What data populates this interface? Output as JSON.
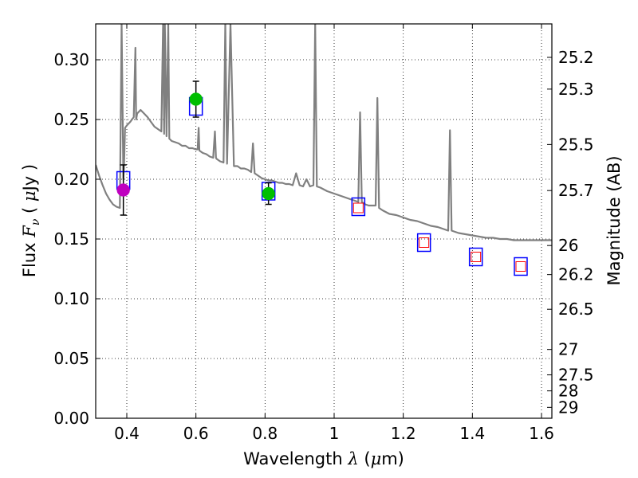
{
  "chart_data": {
    "type": "scatter",
    "xlabel": {
      "prefix": "Wavelength",
      "symbol": "λ",
      "unit_open": " (",
      "unit_mu": "μ",
      "unit_rest": "m)"
    },
    "ylabel": {
      "prefix": "Flux",
      "symbol": "F",
      "subscript": "ν",
      "unit_open": "( ",
      "unit_mu": "μ",
      "unit_rest": "Jy )"
    },
    "y2label": "Magnitude (AB)",
    "xlim": [
      0.31,
      1.63
    ],
    "ylim": [
      0.0,
      0.33
    ],
    "grid": true,
    "x_ticks": [
      "0.4",
      "0.6",
      "0.8",
      "1",
      "1.2",
      "1.4",
      "1.6"
    ],
    "y_ticks": [
      "0.00",
      "0.05",
      "0.10",
      "0.15",
      "0.20",
      "0.25",
      "0.30"
    ],
    "magnitude_ticks": [
      {
        "label": "25.2",
        "mag": 25.2
      },
      {
        "label": "25.3",
        "mag": 25.3
      },
      {
        "label": "25.5",
        "mag": 25.5
      },
      {
        "label": "25.7",
        "mag": 25.7
      },
      {
        "label": "26",
        "mag": 26.0
      },
      {
        "label": "26.2",
        "mag": 26.2
      },
      {
        "label": "26.5",
        "mag": 26.5
      },
      {
        "label": "27",
        "mag": 27.0
      },
      {
        "label": "27.5",
        "mag": 27.5
      },
      {
        "label": "28",
        "mag": 28.0
      },
      {
        "label": "29",
        "mag": 29.0
      }
    ],
    "series": [
      {
        "kind": "model_spectrum",
        "color": "#808080",
        "x": [
          0.31,
          0.32,
          0.33,
          0.34,
          0.35,
          0.36,
          0.37,
          0.38,
          0.385,
          0.39,
          0.392,
          0.395,
          0.4,
          0.41,
          0.42,
          0.425,
          0.427,
          0.43,
          0.44,
          0.45,
          0.46,
          0.47,
          0.48,
          0.49,
          0.5,
          0.505,
          0.508,
          0.51,
          0.515,
          0.52,
          0.523,
          0.53,
          0.54,
          0.55,
          0.56,
          0.57,
          0.58,
          0.59,
          0.6,
          0.605,
          0.608,
          0.61,
          0.62,
          0.63,
          0.64,
          0.65,
          0.655,
          0.658,
          0.66,
          0.67,
          0.68,
          0.685,
          0.69,
          0.7,
          0.71,
          0.72,
          0.73,
          0.74,
          0.75,
          0.76,
          0.765,
          0.77,
          0.78,
          0.79,
          0.8,
          0.81,
          0.82,
          0.83,
          0.84,
          0.85,
          0.86,
          0.87,
          0.88,
          0.89,
          0.9,
          0.91,
          0.92,
          0.93,
          0.94,
          0.945,
          0.95,
          0.96,
          0.98,
          1.0,
          1.02,
          1.04,
          1.06,
          1.07,
          1.075,
          1.08,
          1.09,
          1.1,
          1.12,
          1.125,
          1.13,
          1.14,
          1.16,
          1.18,
          1.2,
          1.22,
          1.24,
          1.26,
          1.28,
          1.3,
          1.32,
          1.33,
          1.335,
          1.34,
          1.36,
          1.38,
          1.4,
          1.42,
          1.44,
          1.46,
          1.48,
          1.5,
          1.52,
          1.54,
          1.56,
          1.58,
          1.6,
          1.63
        ],
        "y": [
          0.212,
          0.203,
          0.195,
          0.188,
          0.183,
          0.179,
          0.177,
          0.176,
          0.33,
          0.2,
          0.21,
          0.243,
          0.245,
          0.248,
          0.252,
          0.31,
          0.25,
          0.255,
          0.258,
          0.255,
          0.252,
          0.248,
          0.244,
          0.242,
          0.24,
          0.33,
          0.238,
          0.33,
          0.236,
          0.33,
          0.234,
          0.232,
          0.231,
          0.23,
          0.228,
          0.228,
          0.226,
          0.226,
          0.225,
          0.225,
          0.243,
          0.224,
          0.222,
          0.221,
          0.219,
          0.218,
          0.24,
          0.218,
          0.217,
          0.215,
          0.214,
          0.33,
          0.213,
          0.33,
          0.211,
          0.211,
          0.209,
          0.209,
          0.208,
          0.206,
          0.23,
          0.205,
          0.203,
          0.201,
          0.2,
          0.199,
          0.199,
          0.198,
          0.197,
          0.197,
          0.196,
          0.196,
          0.195,
          0.205,
          0.195,
          0.194,
          0.2,
          0.194,
          0.195,
          0.33,
          0.194,
          0.193,
          0.19,
          0.188,
          0.186,
          0.184,
          0.182,
          0.181,
          0.256,
          0.181,
          0.179,
          0.178,
          0.178,
          0.268,
          0.176,
          0.174,
          0.171,
          0.17,
          0.168,
          0.166,
          0.165,
          0.163,
          0.161,
          0.16,
          0.158,
          0.157,
          0.241,
          0.157,
          0.155,
          0.154,
          0.153,
          0.152,
          0.151,
          0.151,
          0.15,
          0.15,
          0.149,
          0.149,
          0.149,
          0.149,
          0.149,
          0.149
        ]
      },
      {
        "kind": "model_photometry",
        "name": "",
        "marker": "square",
        "edgecolor": "#0000ff",
        "points": [
          {
            "x": 0.39,
            "y": 0.199
          },
          {
            "x": 0.6,
            "y": 0.261
          },
          {
            "x": 0.81,
            "y": 0.19
          },
          {
            "x": 1.07,
            "y": 0.177
          },
          {
            "x": 1.26,
            "y": 0.147
          },
          {
            "x": 1.41,
            "y": 0.135
          },
          {
            "x": 1.54,
            "y": 0.127
          }
        ]
      },
      {
        "kind": "predicted_photometry",
        "name": "",
        "marker": "square",
        "edgecolor": "#ff0000",
        "points": [
          {
            "x": 1.07,
            "y": 0.176
          },
          {
            "x": 1.26,
            "y": 0.147
          },
          {
            "x": 1.41,
            "y": 0.135
          },
          {
            "x": 1.54,
            "y": 0.127
          }
        ]
      },
      {
        "kind": "observed_photometry",
        "name": "",
        "marker": "circle",
        "points": [
          {
            "x": 0.39,
            "y": 0.191,
            "yerr": 0.021,
            "color": "#bf00bf"
          },
          {
            "x": 0.6,
            "y": 0.267,
            "yerr": 0.015,
            "color": "#00bf00"
          },
          {
            "x": 0.81,
            "y": 0.188,
            "yerr": 0.009,
            "color": "#00bf00"
          }
        ]
      }
    ]
  }
}
